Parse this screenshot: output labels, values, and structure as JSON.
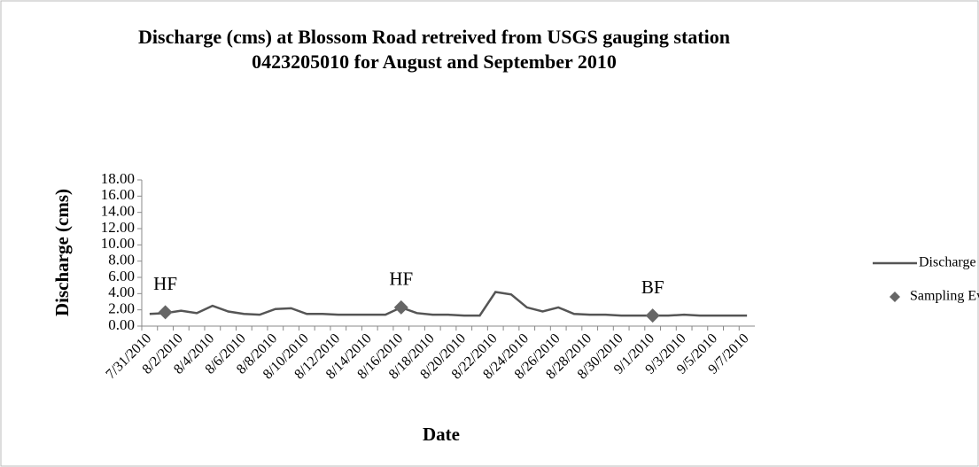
{
  "chart_data": {
    "type": "line",
    "title": [
      "Discharge (cms) at Blossom Road retreived from USGS gauging station",
      "0423205010 for August and September 2010"
    ],
    "x_label": "Date",
    "y_label": "Discharge (cms)",
    "categories": [
      "7/31/2010",
      null,
      "8/2/2010",
      null,
      "8/4/2010",
      null,
      "8/6/2010",
      null,
      "8/8/2010",
      null,
      "8/10/2010",
      null,
      "8/12/2010",
      null,
      "8/14/2010",
      null,
      "8/16/2010",
      null,
      "8/18/2010",
      null,
      "8/20/2010",
      null,
      "8/22/2010",
      null,
      "8/24/2010",
      null,
      "8/26/2010",
      null,
      "8/28/2010",
      null,
      "8/30/2010",
      null,
      "9/1/2010",
      null,
      "9/3/2010",
      null,
      "9/5/2010",
      null,
      "9/7/2010"
    ],
    "ylim": [
      0,
      18
    ],
    "yticks": [
      {
        "value": 0,
        "label": "0.00"
      },
      {
        "value": 2,
        "label": "2.00"
      },
      {
        "value": 4,
        "label": "4.00"
      },
      {
        "value": 6,
        "label": "6.00"
      },
      {
        "value": 8,
        "label": "8.00"
      },
      {
        "value": 10,
        "label": "10.00"
      },
      {
        "value": 12,
        "label": "12.00"
      },
      {
        "value": 14,
        "label": "14.00"
      },
      {
        "value": 16,
        "label": "16.00"
      },
      {
        "value": 18,
        "label": "18.00"
      }
    ],
    "series": [
      {
        "name": "Discharge",
        "kind": "line",
        "color": "#555555",
        "values": [
          1.5,
          1.6,
          1.9,
          1.6,
          2.5,
          1.8,
          1.5,
          1.4,
          2.1,
          2.2,
          1.5,
          1.5,
          1.4,
          1.4,
          1.4,
          1.4,
          2.3,
          1.6,
          1.4,
          1.4,
          1.3,
          1.3,
          4.2,
          3.9,
          2.3,
          1.8,
          2.3,
          1.5,
          1.4,
          1.4,
          1.3,
          1.3,
          1.3,
          1.3,
          1.4,
          1.3,
          1.3,
          1.3,
          1.3
        ]
      },
      {
        "name": "Sampling Events",
        "kind": "marker",
        "color": "#666666",
        "values": [
          null,
          1.7,
          null,
          null,
          null,
          null,
          null,
          null,
          null,
          null,
          null,
          null,
          null,
          null,
          null,
          null,
          2.3,
          null,
          null,
          null,
          null,
          null,
          null,
          null,
          null,
          null,
          null,
          null,
          null,
          null,
          null,
          null,
          1.3,
          null,
          null,
          null,
          null,
          null,
          null
        ],
        "point_labels": [
          null,
          "HF",
          null,
          null,
          null,
          null,
          null,
          null,
          null,
          null,
          null,
          null,
          null,
          null,
          null,
          null,
          "HF",
          null,
          null,
          null,
          null,
          null,
          null,
          null,
          null,
          null,
          null,
          null,
          null,
          null,
          null,
          null,
          "BF",
          null,
          null,
          null,
          null,
          null,
          null
        ]
      }
    ]
  }
}
